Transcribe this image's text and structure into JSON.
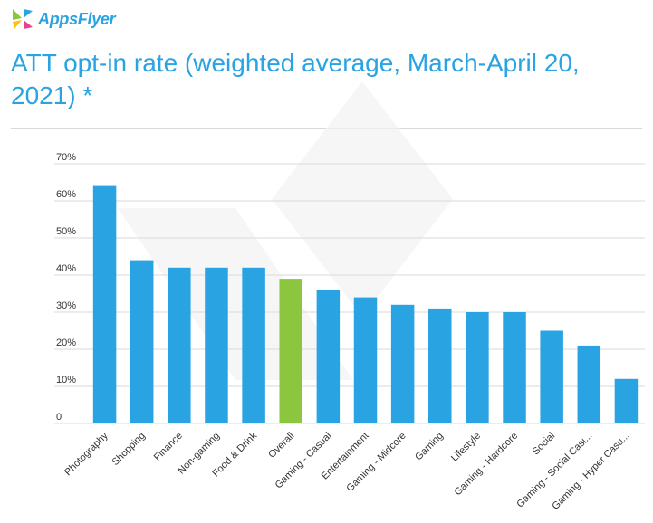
{
  "logo": {
    "text": "AppsFlyer",
    "icon": "appsflyer-wings-icon",
    "colors": [
      "#8cc63f",
      "#2aa3e3",
      "#ffc20e",
      "#ee3d8f"
    ]
  },
  "chart_data": {
    "type": "bar",
    "title": "ATT opt-in rate (weighted average, March-April 20, 2021) *",
    "xlabel": "",
    "ylabel": "",
    "categories": [
      "Photography",
      "Shopping",
      "Finance",
      "Non-gaming",
      "Food & Drink",
      "Overall",
      "Gaming - Casual",
      "Entertainment",
      "Gaming - Midcore",
      "Gaming",
      "Lifestyle",
      "Gaming - Hardcore",
      "Social",
      "Gaming - Social Casi...",
      "Gaming - Hyper Casu..."
    ],
    "values": [
      64,
      44,
      42,
      42,
      42,
      39,
      36,
      34,
      32,
      31,
      30,
      30,
      25,
      21,
      12
    ],
    "highlight_index": 5,
    "ylim": [
      0,
      70
    ],
    "yticks": [
      0,
      10,
      20,
      30,
      40,
      50,
      60,
      70
    ],
    "ytick_labels": [
      "0",
      "10%",
      "20%",
      "30%",
      "40%",
      "50%",
      "60%",
      "70%"
    ],
    "grid": true,
    "legend": "none",
    "colors": {
      "bar": "#2aa3e3",
      "highlight": "#8cc63f",
      "grid": "#d9d9d9"
    }
  }
}
